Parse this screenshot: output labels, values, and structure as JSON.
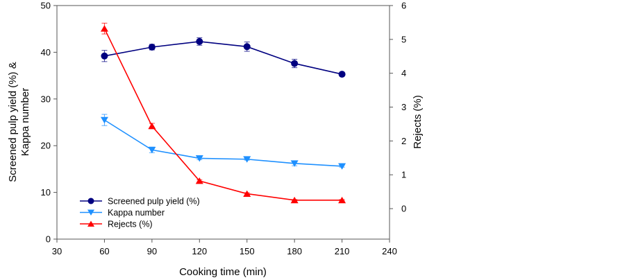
{
  "chart_data": {
    "type": "line",
    "title": "",
    "xlabel": "Cooking time (min)",
    "ylabel": [
      "Screened pulp yield (%) &",
      "Kappa number"
    ],
    "y2label": "Rejects (%)",
    "xlim": [
      30,
      240
    ],
    "ylim": [
      0,
      50
    ],
    "y2lim": [
      -0.9,
      6
    ],
    "xticks": [
      30,
      60,
      90,
      120,
      150,
      180,
      210,
      240
    ],
    "yticks": [
      0,
      10,
      20,
      30,
      40,
      50
    ],
    "y2ticks": [
      0,
      1,
      2,
      3,
      4,
      5,
      6
    ],
    "grid": false,
    "legend_position": "bottom-left",
    "x": [
      60,
      90,
      120,
      150,
      180,
      210
    ],
    "series": [
      {
        "name": "Screened pulp yield (%)",
        "axis": "left",
        "marker": "circle",
        "color": "#000080",
        "values": [
          39.2,
          41.1,
          42.3,
          41.2,
          37.6,
          35.3
        ],
        "errors": [
          1.2,
          0.6,
          0.8,
          1.0,
          0.9,
          0.0
        ]
      },
      {
        "name": "Kappa number",
        "axis": "left",
        "marker": "triangle-down",
        "color": "#1E90FF",
        "values": [
          25.5,
          19.1,
          17.3,
          17.1,
          16.2,
          15.6
        ],
        "errors": [
          1.2,
          0.6,
          0.3,
          0.2,
          0.5,
          0.2
        ]
      },
      {
        "name": "Rejects (%)",
        "axis": "right",
        "marker": "triangle-up",
        "color": "#FF0000",
        "values": [
          5.32,
          2.44,
          0.82,
          0.44,
          0.25,
          0.25
        ],
        "errors": [
          0.16,
          0.08,
          0.03,
          0.03,
          0.02,
          0.02
        ]
      }
    ]
  }
}
